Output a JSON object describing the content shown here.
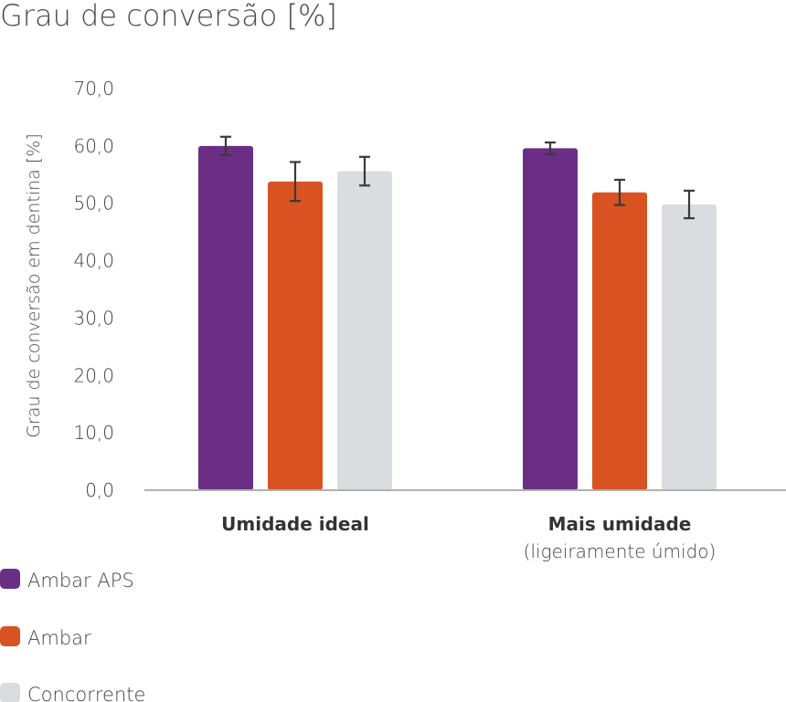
{
  "chart_data": {
    "type": "bar",
    "title": "Grau de conversão [%]",
    "ylabel": "Grau de conversão em dentina [%]",
    "xlabel": "",
    "ylim": [
      0,
      70
    ],
    "yticks": [
      "0,0",
      "10,0",
      "20,0",
      "30,0",
      "40,0",
      "50,0",
      "60,0",
      "70,0"
    ],
    "grid": false,
    "legend_position": "bottom-left",
    "categories": [
      {
        "label": "Umidade ideal",
        "sublabel": ""
      },
      {
        "label": "Mais umidade",
        "sublabel": "(ligeiramente úmido)"
      }
    ],
    "series": [
      {
        "name": "Ambar APS",
        "color": "#6a2f85",
        "values": [
          60.0,
          59.6
        ],
        "errors": [
          1.6,
          1.0
        ]
      },
      {
        "name": "Ambar",
        "color": "#d95322",
        "values": [
          53.8,
          51.9
        ],
        "errors": [
          3.4,
          2.2
        ]
      },
      {
        "name": "Concorrente",
        "color": "#dadcdf",
        "values": [
          55.6,
          49.8
        ],
        "errors": [
          2.5,
          2.4
        ]
      }
    ]
  }
}
